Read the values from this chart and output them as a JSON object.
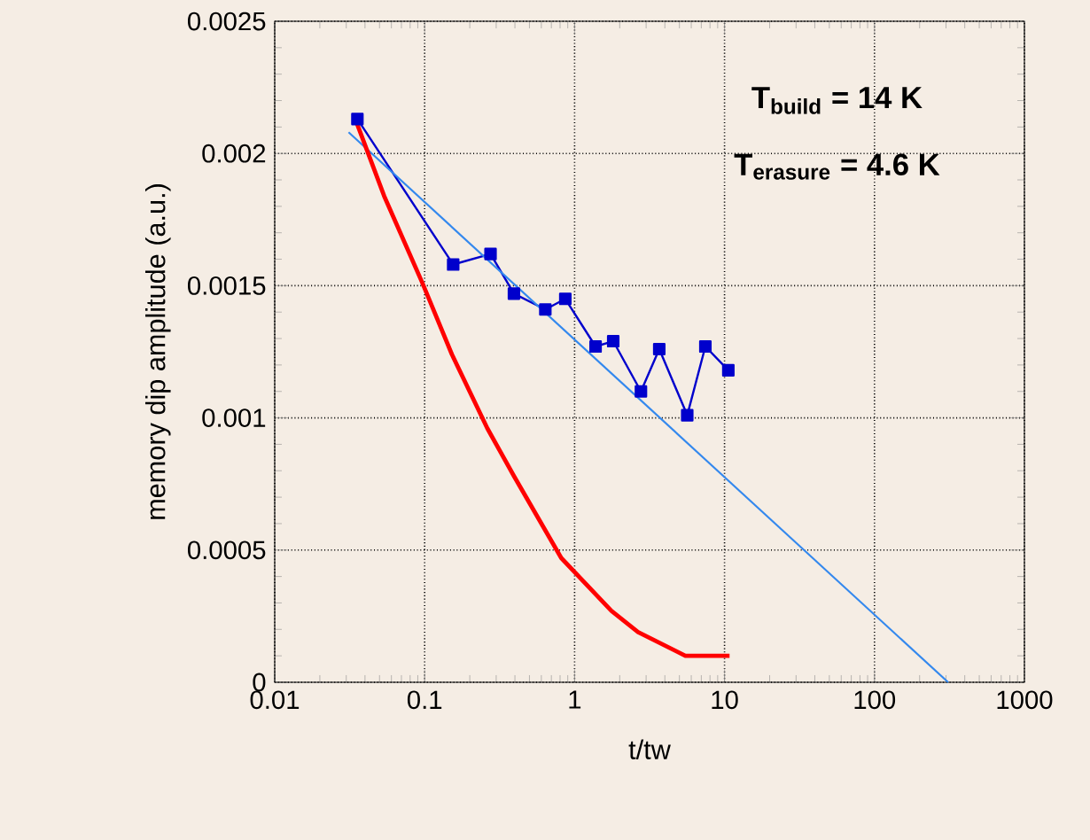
{
  "chart_data": {
    "type": "line",
    "xlabel": "t/tw",
    "ylabel": "memory dip amplitude (a.u.)",
    "log": "x",
    "grid": true,
    "xlim": [
      0.01,
      1000
    ],
    "ylim": [
      0,
      0.0025
    ],
    "xticks": [
      0.01,
      0.1,
      1,
      10,
      100,
      1000
    ],
    "yticks": [
      0,
      0.0005,
      0.001,
      0.0015,
      0.002,
      0.0025
    ],
    "annotations": [
      "**T$_{build}$ = 14 K**",
      "**T$_{erasure}$ = 4.6 K**"
    ],
    "series": [
      {
        "color": "#0000cc",
        "marker": "square",
        "x": [
          0.0356,
          0.155,
          0.275,
          0.394,
          0.638,
          0.867,
          1.38,
          1.81,
          2.77,
          3.67,
          5.64,
          7.45,
          10.6
        ],
        "values": [
          0.00213,
          0.00158,
          0.00162,
          0.00147,
          0.00141,
          0.00145,
          0.00127,
          0.00129,
          0.0011,
          0.00126,
          0.00101,
          0.00127,
          0.00118
        ]
      },
      {
        "color": "#3388ee",
        "marker": "none",
        "x": [
          0.0311,
          310
        ],
        "values": [
          0.00208,
          0
        ]
      },
      {
        "color": "#ff0000",
        "marker": "none",
        "x": [
          0.035,
          0.0536,
          0.0966,
          0.152,
          0.262,
          0.394,
          0.815,
          1.76,
          2.65,
          5.48,
          10.8
        ],
        "values": [
          0.00212,
          0.00184,
          0.00151,
          0.00124,
          0.00096,
          0.00078,
          0.00047,
          0.00027,
          0.00019,
          0.0001,
          0.0001
        ]
      }
    ]
  }
}
